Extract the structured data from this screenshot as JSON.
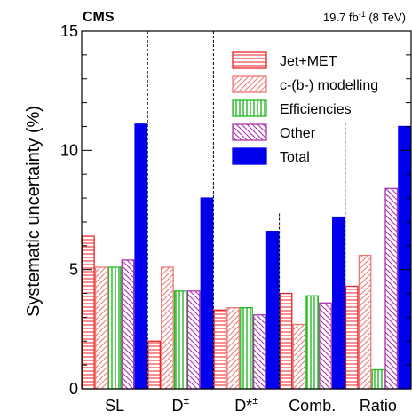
{
  "header": {
    "experiment": "CMS",
    "luminosity": "19.7 fb",
    "luminosity_exp": "-1",
    "energy": "(8 TeV)"
  },
  "chart_data": {
    "type": "bar",
    "ylabel": "Systematic uncertainty (%)",
    "ylim": [
      0,
      15
    ],
    "yticks": [
      "0",
      "5",
      "10",
      "15"
    ],
    "categories": [
      "SL",
      "D±",
      "D*±",
      "Comb.",
      "Ratio"
    ],
    "category_labels": [
      {
        "base": "SL",
        "sup": ""
      },
      {
        "base": "D",
        "sup": "±"
      },
      {
        "base": "D*",
        "sup": "±"
      },
      {
        "base": "Comb.",
        "sup": ""
      },
      {
        "base": "Ratio",
        "sup": ""
      }
    ],
    "series": [
      {
        "name": "Jet+MET",
        "values": [
          6.4,
          2.0,
          3.3,
          4.0,
          4.3
        ],
        "color": "#ee2222",
        "pattern": "hlines"
      },
      {
        "name": "c-(b-) modelling",
        "values": [
          5.1,
          5.1,
          3.4,
          2.7,
          5.6
        ],
        "color": "#ee7777",
        "pattern": "diag-up"
      },
      {
        "name": "Efficiencies",
        "values": [
          5.1,
          4.1,
          3.4,
          3.9,
          0.8
        ],
        "color": "#22bb22",
        "pattern": "vlines"
      },
      {
        "name": "Other",
        "values": [
          5.4,
          4.1,
          3.1,
          3.6,
          8.4
        ],
        "color": "#aa33aa",
        "pattern": "diag-down"
      },
      {
        "name": "Total",
        "values": [
          11.1,
          8.0,
          6.6,
          7.2,
          11.0
        ],
        "color": "#0000ee",
        "pattern": "solid"
      }
    ],
    "legend_position": "top-right",
    "separators": "dashed vertical lines between categories",
    "grid": false
  }
}
